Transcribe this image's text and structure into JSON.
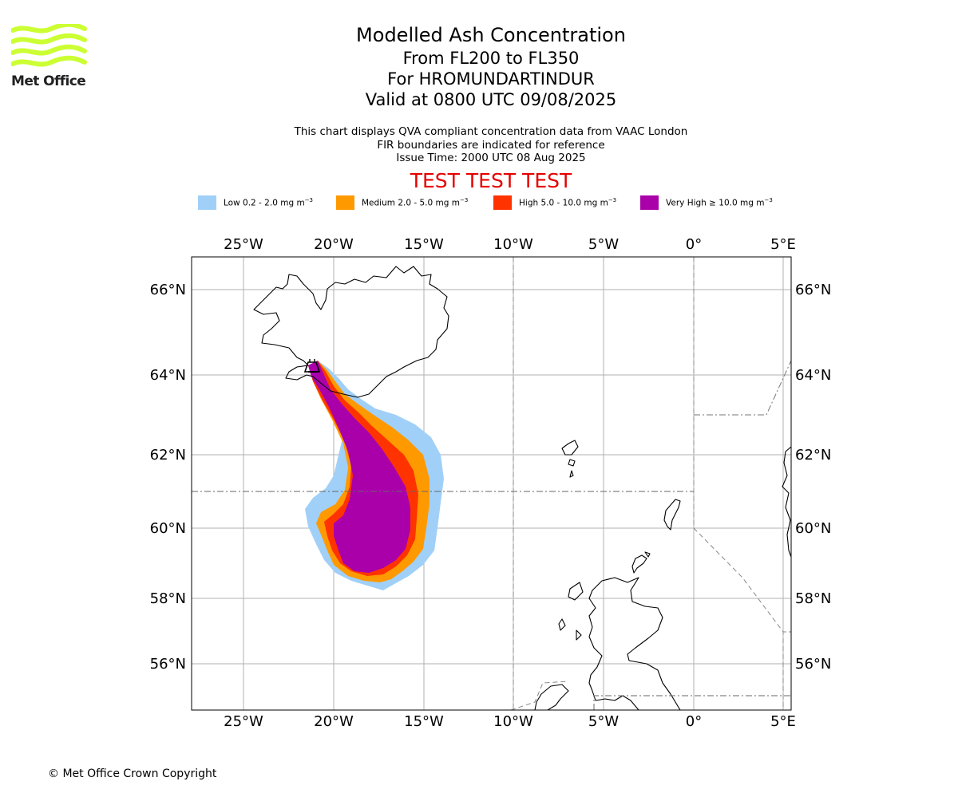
{
  "branding": {
    "logo_text": "Met Office",
    "logo_icon": "met-office-wave-logo",
    "logo_color": "#ccff33"
  },
  "header": {
    "title": "Modelled Ash Concentration",
    "flight_levels": "From FL200 to FL350",
    "volcano": "For HROMUNDARTINDUR",
    "valid_time": "Valid at 0800 UTC 09/08/2025"
  },
  "notes": {
    "line1": "This chart displays QVA compliant concentration data from VAAC London",
    "line2": "FIR boundaries are indicated for reference",
    "line3": "Issue Time: 2000 UTC 08 Aug 2025"
  },
  "banner": {
    "text": "TEST TEST TEST",
    "color": "#e60000"
  },
  "legend": [
    {
      "label": "Low 0.2 - 2.0 mg m",
      "unit_exponent": "−3",
      "color": "#a0d0f8"
    },
    {
      "label": "Medium 2.0 - 5.0 mg m",
      "unit_exponent": "−3",
      "color": "#ff9900"
    },
    {
      "label": "High 5.0 - 10.0 mg m",
      "unit_exponent": "−3",
      "color": "#ff3300"
    },
    {
      "label": "Very High  ≥  10.0 mg m",
      "unit_exponent": "−3",
      "color": "#aa00aa"
    }
  ],
  "map": {
    "lon_ticks": [
      "25°W",
      "20°W",
      "15°W",
      "10°W",
      "5°W",
      "0°",
      "5°E"
    ],
    "lat_ticks": [
      "66°N",
      "64°N",
      "62°N",
      "60°N",
      "58°N",
      "56°N"
    ],
    "lon_range": [
      -28,
      5.5
    ],
    "lat_range": [
      54.8,
      66.8
    ],
    "grid": true,
    "features": [
      "Iceland coastline",
      "Faroe Islands",
      "Shetland",
      "Orkney",
      "Scotland",
      "Northern Ireland",
      "Norway coast",
      "FIR boundaries",
      "volcano marker"
    ]
  },
  "footer": {
    "copyright": "© Met Office Crown Copyright"
  }
}
